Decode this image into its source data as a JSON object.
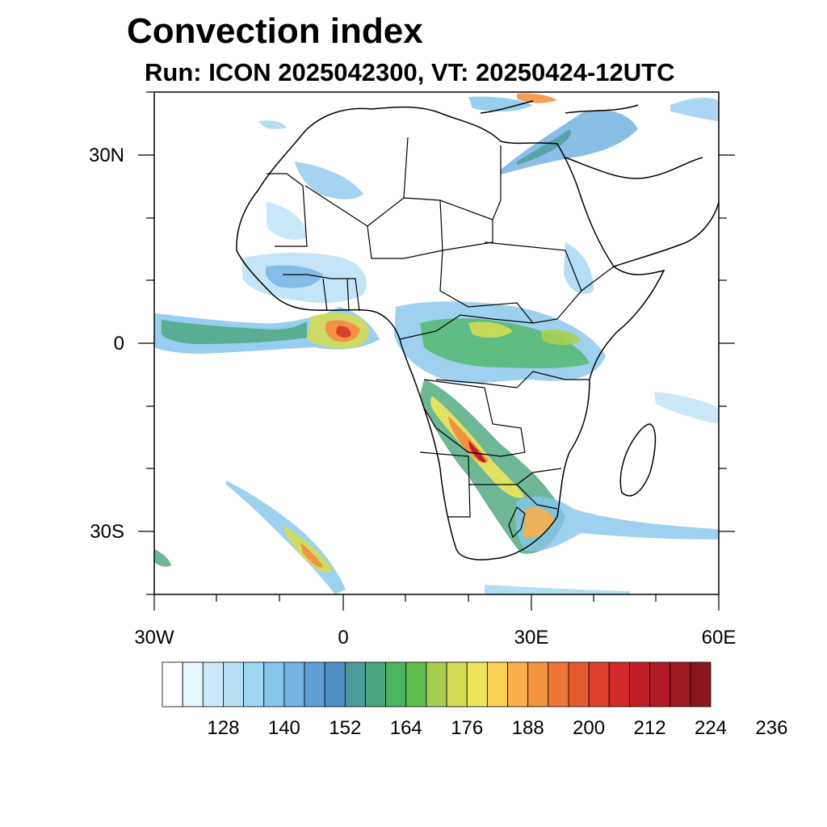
{
  "header": {
    "title": "Convection index",
    "subtitle": "Run: ICON 2025042300,  VT: 20250424-12UTC"
  },
  "map": {
    "lat_labels": [
      "30N",
      "0",
      "30S"
    ],
    "lon_labels": [
      "30W",
      "0",
      "30E",
      "60E"
    ],
    "lat_range": [
      -40,
      40
    ],
    "lon_range": [
      -30,
      60
    ],
    "tick_lats": [
      30,
      0,
      -30
    ],
    "tick_lons": [
      -30,
      0,
      30,
      60
    ],
    "coastlines": "black",
    "country_borders": "black"
  },
  "colorbar": {
    "colors": [
      "#ffffff",
      "#e6f4fc",
      "#cbe8f7",
      "#b4dff5",
      "#9fd6f4",
      "#86c5ec",
      "#74b3e3",
      "#5d9fd6",
      "#4f8fc4",
      "#4c9b9a",
      "#4aa67c",
      "#4ab45f",
      "#5fbe4e",
      "#a6cf4f",
      "#d3dc54",
      "#efe55a",
      "#f8cf53",
      "#f7b04a",
      "#f39240",
      "#ee7438",
      "#e65a30",
      "#dc3f2c",
      "#d22a2a",
      "#c31f29",
      "#b01b25",
      "#9d1a21",
      "#8a171d"
    ],
    "tick_labels": [
      "128",
      "140",
      "152",
      "164",
      "176",
      "188",
      "200",
      "212",
      "224",
      "236"
    ]
  }
}
